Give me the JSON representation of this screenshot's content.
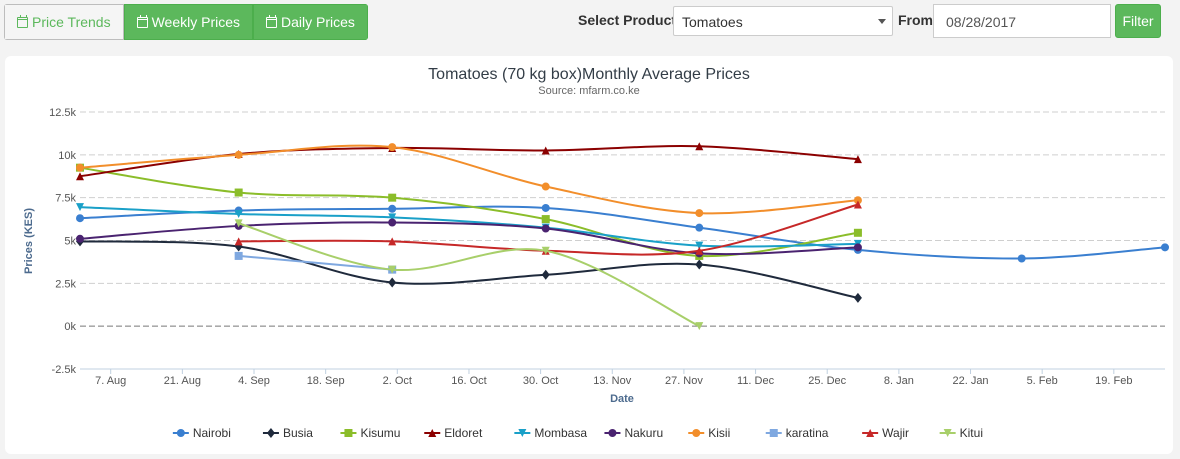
{
  "toolbar": {
    "tabs": [
      {
        "label": "Price Trends",
        "icon": "calendar-icon",
        "active": false
      },
      {
        "label": "Weekly Prices",
        "icon": "calendar-icon",
        "active": true
      },
      {
        "label": "Daily Prices",
        "icon": "calendar-icon",
        "active": true
      }
    ],
    "select_product_label": "Select Product",
    "product_value": "Tomatoes",
    "from_label": "From",
    "from_date": "08/28/2017",
    "filter_label": "Filter"
  },
  "colors": {
    "accent": "#5cb85c"
  },
  "chart_data": {
    "type": "line",
    "title": "Tomatoes (70 kg box)Monthly Average Prices",
    "subtitle": "Source: mfarm.co.ke",
    "xlabel": "Date",
    "ylabel": "Prices (KES)",
    "ylim": [
      -2500,
      12500
    ],
    "yticks": [
      12500,
      10000,
      7500,
      5000,
      2500,
      0,
      -2500
    ],
    "ytick_labels": [
      "12.5k",
      "10k",
      "7.5k",
      "5k",
      "2.5k",
      "0k",
      "-2.5k"
    ],
    "xlim": [
      "2017-08-01",
      "2018-03-01"
    ],
    "xticks": [
      "2017-08-07",
      "2017-08-21",
      "2017-09-04",
      "2017-09-18",
      "2017-10-02",
      "2017-10-16",
      "2017-10-30",
      "2017-11-13",
      "2017-11-27",
      "2017-12-11",
      "2017-12-25",
      "2018-01-08",
      "2018-01-22",
      "2018-02-05",
      "2018-02-19"
    ],
    "xtick_labels": [
      "7. Aug",
      "21. Aug",
      "4. Sep",
      "18. Sep",
      "2. Oct",
      "16. Oct",
      "30. Oct",
      "13. Nov",
      "27. Nov",
      "11. Dec",
      "25. Dec",
      "8. Jan",
      "22. Jan",
      "5. Feb",
      "19. Feb"
    ],
    "grid": true,
    "legend_position": "bottom",
    "series": [
      {
        "name": "Nairobi",
        "color": "#3a7fd0",
        "marker": "circle",
        "x": [
          "2017-08-01",
          "2017-09-01",
          "2017-10-01",
          "2017-10-31",
          "2017-11-30",
          "2017-12-31",
          "2018-02-01",
          "2018-03-01"
        ],
        "y": [
          6300,
          6750,
          6850,
          6900,
          5750,
          4450,
          3950,
          4600
        ]
      },
      {
        "name": "Busia",
        "color": "#1f2a3c",
        "marker": "diamond",
        "x": [
          "2017-08-01",
          "2017-09-01",
          "2017-10-01",
          "2017-10-31",
          "2017-11-30",
          "2017-12-31"
        ],
        "y": [
          4950,
          4650,
          2550,
          3000,
          3600,
          1650
        ]
      },
      {
        "name": "Kisumu",
        "color": "#8bbd2a",
        "marker": "square",
        "x": [
          "2017-08-01",
          "2017-09-01",
          "2017-10-01",
          "2017-10-31",
          "2017-11-30",
          "2017-12-31"
        ],
        "y": [
          9250,
          7800,
          7500,
          6250,
          4100,
          5450
        ]
      },
      {
        "name": "Eldoret",
        "color": "#8b0000",
        "marker": "triangle",
        "x": [
          "2017-08-01",
          "2017-09-01",
          "2017-10-01",
          "2017-10-31",
          "2017-11-30",
          "2017-12-31"
        ],
        "y": [
          8750,
          10050,
          10400,
          10250,
          10500,
          9750
        ]
      },
      {
        "name": "Mombasa",
        "color": "#1aa0c8",
        "marker": "triangle-down",
        "x": [
          "2017-08-01",
          "2017-09-01",
          "2017-10-01",
          "2017-10-31",
          "2017-11-30",
          "2017-12-31"
        ],
        "y": [
          6950,
          6550,
          6350,
          5750,
          4700,
          4800
        ]
      },
      {
        "name": "Nakuru",
        "color": "#4a2370",
        "marker": "circle",
        "x": [
          "2017-08-01",
          "2017-09-01",
          "2017-10-01",
          "2017-10-31",
          "2017-11-30",
          "2017-12-31"
        ],
        "y": [
          5100,
          5850,
          6050,
          5700,
          4250,
          4600
        ]
      },
      {
        "name": "Kisii",
        "color": "#f28e2b",
        "marker": "circle",
        "x": [
          "2017-08-01",
          "2017-09-01",
          "2017-10-01",
          "2017-10-31",
          "2017-11-30",
          "2017-12-31"
        ],
        "y": [
          9250,
          10000,
          10450,
          8150,
          6600,
          7350
        ]
      },
      {
        "name": "karatina",
        "color": "#7fa8e0",
        "marker": "square",
        "x": [
          "2017-09-01",
          "2017-10-01"
        ],
        "y": [
          4100,
          3300
        ]
      },
      {
        "name": "Wajir",
        "color": "#c62828",
        "marker": "triangle",
        "x": [
          "2017-09-01",
          "2017-10-01",
          "2017-10-31",
          "2017-11-30",
          "2017-12-31"
        ],
        "y": [
          4950,
          4950,
          4400,
          4400,
          7100
        ]
      },
      {
        "name": "Kitui",
        "color": "#a8cf6a",
        "marker": "triangle-down",
        "x": [
          "2017-09-01",
          "2017-10-01",
          "2017-10-31",
          "2017-11-30"
        ],
        "y": [
          6000,
          3300,
          4400,
          0
        ]
      }
    ]
  }
}
